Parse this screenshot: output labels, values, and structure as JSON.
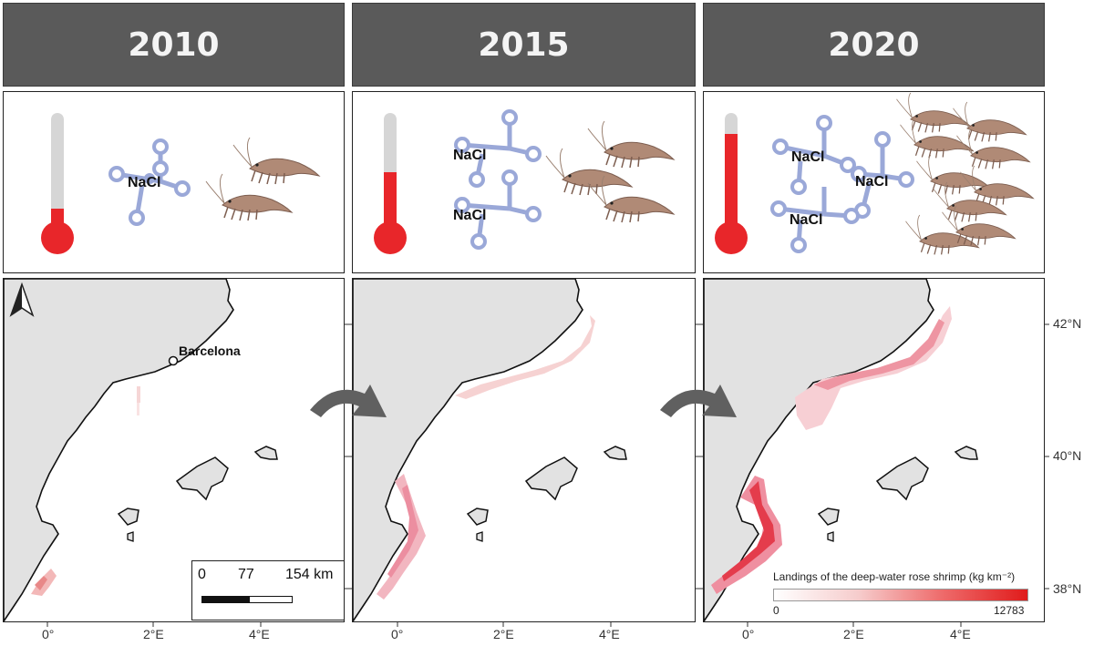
{
  "panels": [
    {
      "year": "2010",
      "temp_level": 0.32,
      "nacl_count": 1,
      "shrimp_count": 2
    },
    {
      "year": "2015",
      "temp_level": 0.62,
      "nacl_count": 2,
      "shrimp_count": 4
    },
    {
      "year": "2020",
      "temp_level": 0.93,
      "nacl_count": 3,
      "shrimp_count": 9
    }
  ],
  "nacl_label": "NaCl",
  "place_label": "Barcelona",
  "x_ticks": [
    "0°",
    "2°E",
    "4°E"
  ],
  "y_ticks": [
    "42°N",
    "40°N",
    "38°N"
  ],
  "scale_bar": {
    "labels": [
      "0",
      "77",
      "154 km"
    ]
  },
  "legend": {
    "title": "Landings of the deep-water rose shrimp (kg km⁻²)",
    "min": "0",
    "max": "12783"
  },
  "colors": {
    "header_bg": "#5a5a5a",
    "header_text": "#f4f4f4",
    "land": "#e2e2e2",
    "thermometer_red": "#e8262a",
    "thermometer_gray": "#d6d6d6",
    "molecule": "#9aa8d8",
    "shrimp": "#b08a76",
    "landings_high": "#e01b1b",
    "arrow": "#606060"
  },
  "icons": [
    "north-arrow-icon",
    "thermometer-icon",
    "salt-molecule-icon",
    "shrimp-icon",
    "transition-arrow-icon"
  ]
}
